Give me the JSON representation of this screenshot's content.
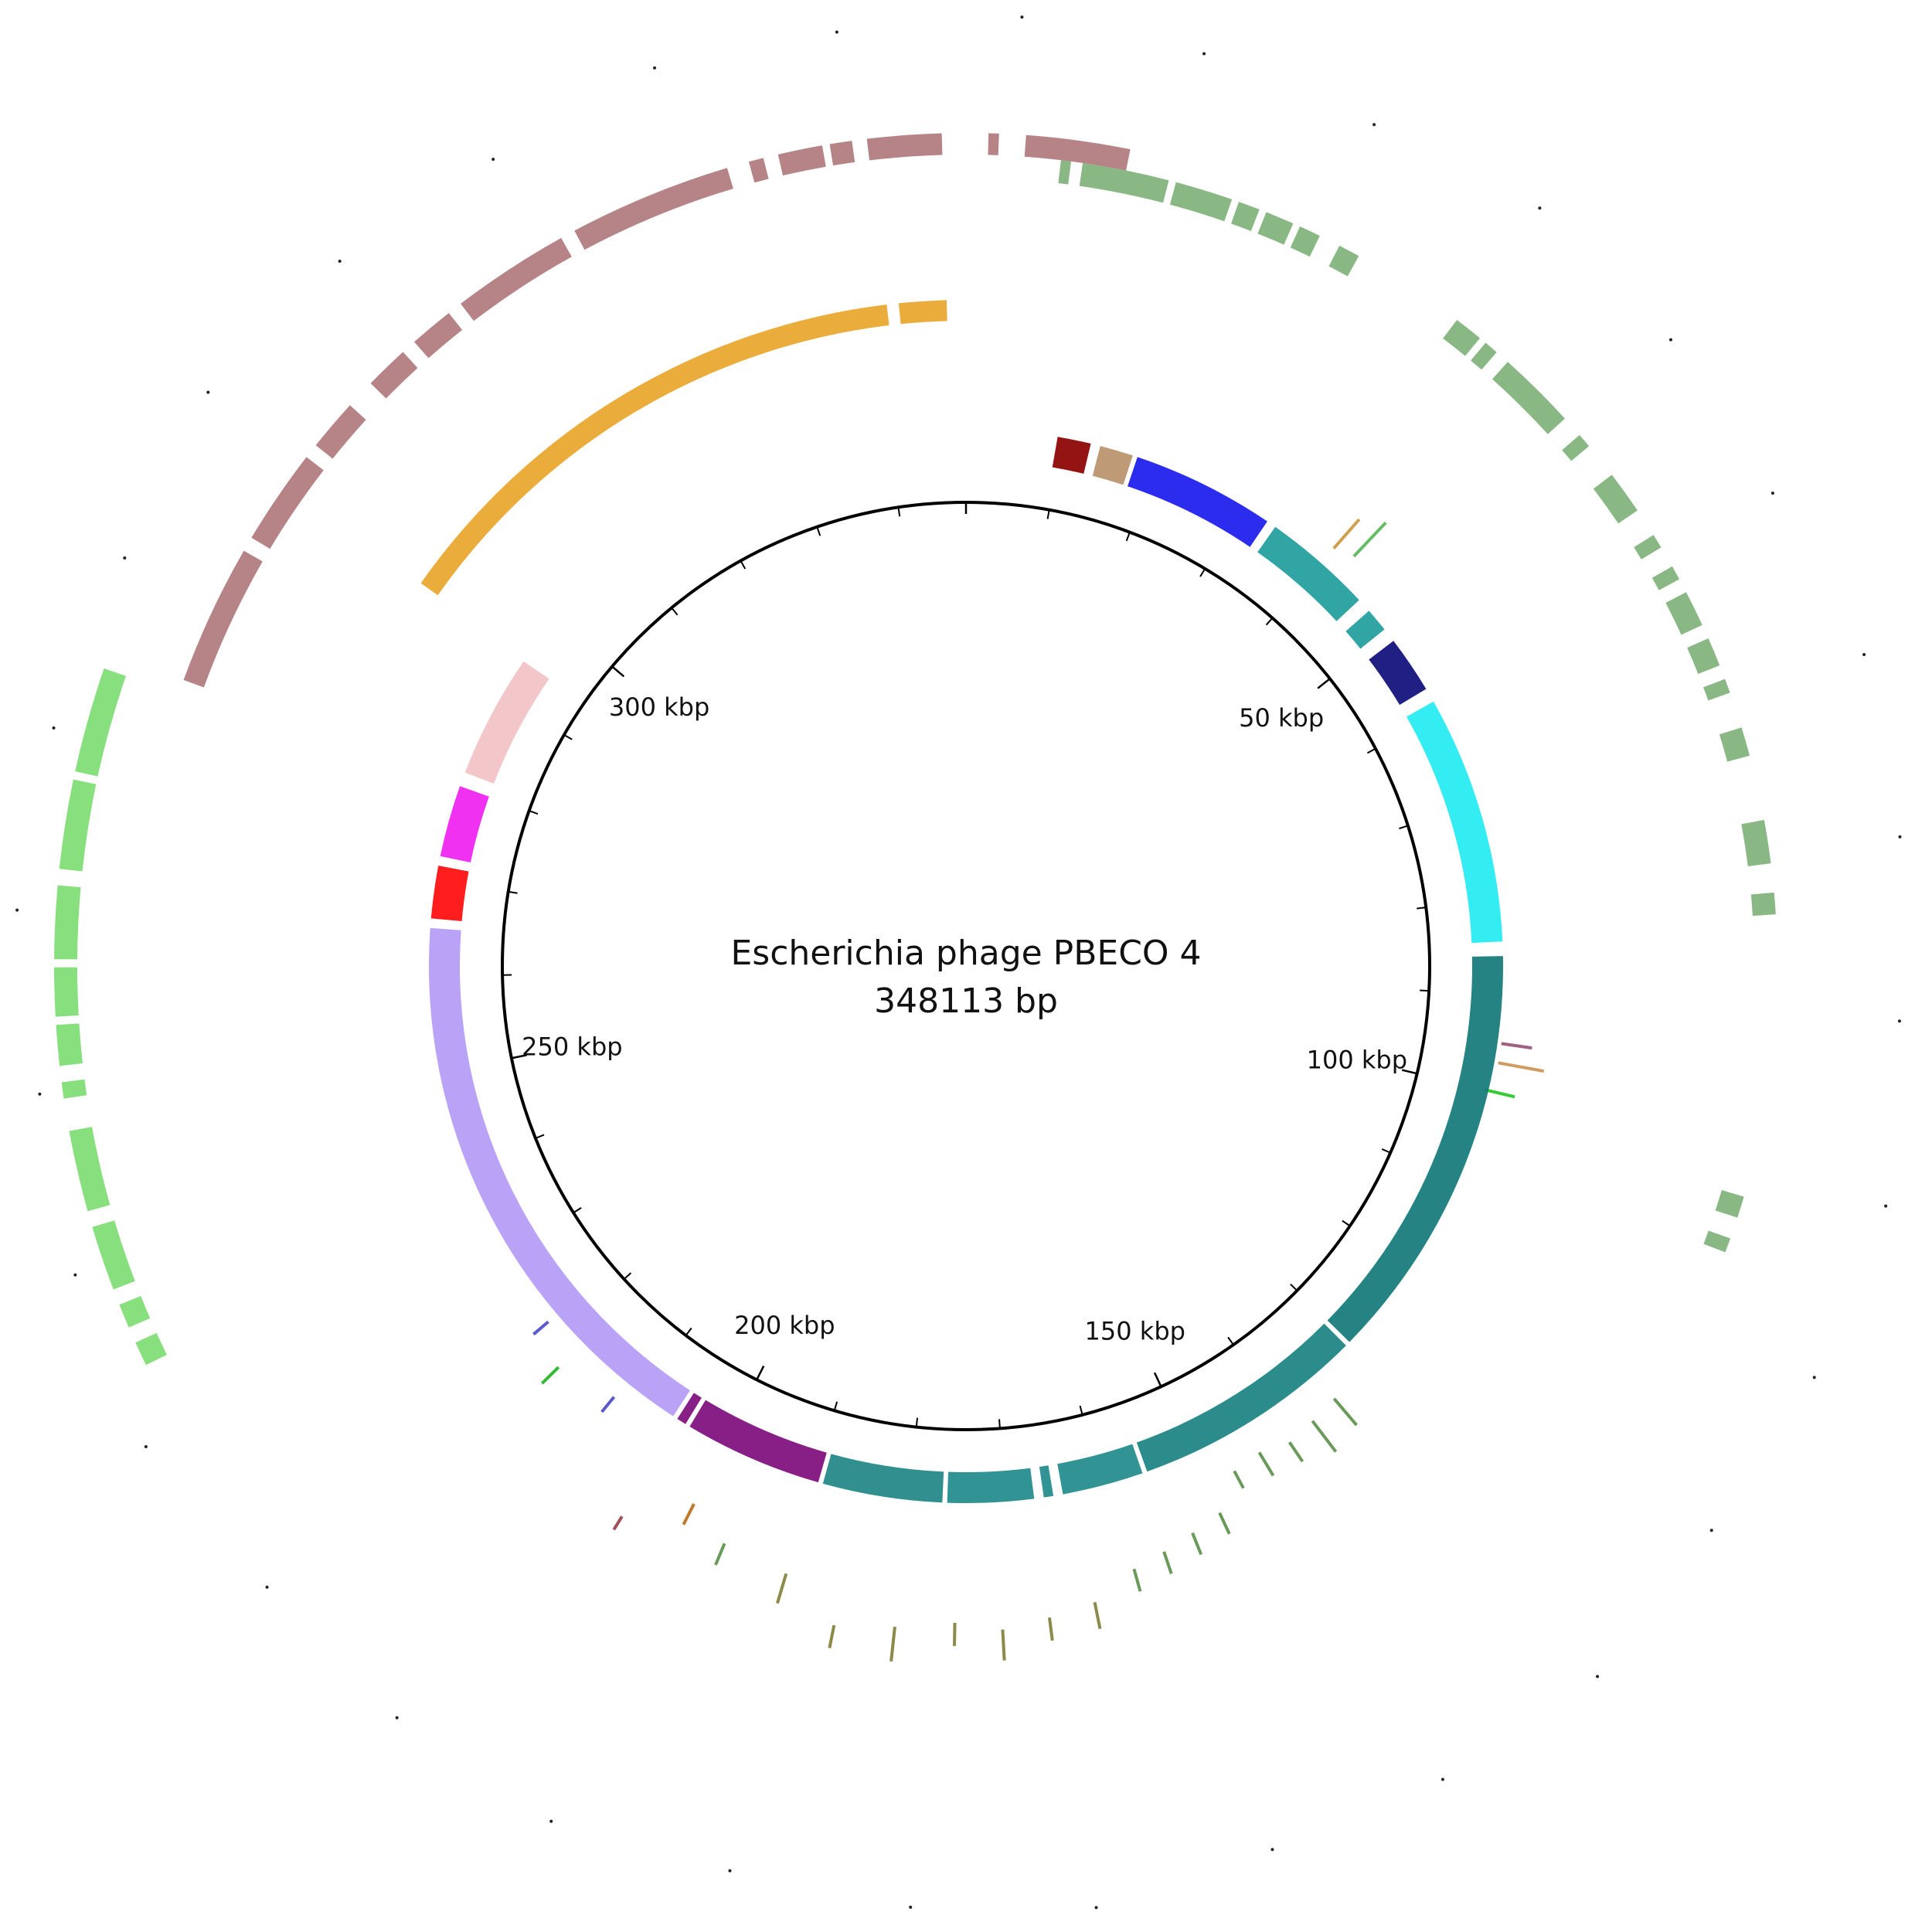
{
  "title": {
    "organism": "Escherichia phage PBECO 4",
    "length_label": "348113 bp"
  },
  "genome_length": 348113,
  "tick_labels": [
    {
      "pos": 50000,
      "text": "50 kbp"
    },
    {
      "pos": 100000,
      "text": "100 kbp"
    },
    {
      "pos": 150000,
      "text": "150 kbp"
    },
    {
      "pos": 200000,
      "text": "200 kbp"
    },
    {
      "pos": 250000,
      "text": "250 kbp"
    },
    {
      "pos": 300000,
      "text": "300 kbp"
    }
  ],
  "minor_tick_step": 10000,
  "contig_ring": [
    {
      "start": 9500,
      "end": 13000,
      "color": "#8b0000"
    },
    {
      "start": 14000,
      "end": 17500,
      "color": "#b8926a"
    },
    {
      "start": 18000,
      "end": 33000,
      "color": "#1a1aee"
    },
    {
      "start": 34000,
      "end": 45500,
      "color": "#1f9c9c"
    },
    {
      "start": 47000,
      "end": 49500,
      "color": "#1f9c9c"
    },
    {
      "start": 51000,
      "end": 57000,
      "color": "#0c0c7a"
    },
    {
      "start": 58500,
      "end": 84500,
      "color": "#22ecf2"
    },
    {
      "start": 86000,
      "end": 130000,
      "color": "#127878"
    },
    {
      "start": 130500,
      "end": 155000,
      "color": "#1a8282"
    },
    {
      "start": 155500,
      "end": 164000,
      "color": "#1f8a8a"
    },
    {
      "start": 165000,
      "end": 166000,
      "color": "#1f8a8a"
    },
    {
      "start": 167000,
      "end": 176000,
      "color": "#1f8a8a"
    },
    {
      "start": 176500,
      "end": 189000,
      "color": "#1f8585"
    },
    {
      "start": 189500,
      "end": 204000,
      "color": "#7d0c7d"
    },
    {
      "start": 204500,
      "end": 205500,
      "color": "#7d0c7d"
    },
    {
      "start": 206000,
      "end": 265000,
      "color": "#b49af5"
    },
    {
      "start": 266000,
      "end": 271500,
      "color": "#ff0a0a"
    },
    {
      "start": 272500,
      "end": 280000,
      "color": "#f01ff0"
    },
    {
      "start": 281500,
      "end": 294500,
      "color": "#f2c2c6"
    }
  ],
  "orange_ring": [
    {
      "start": 295000,
      "end": 341500,
      "color": "#e8a52a"
    },
    {
      "start": 342500,
      "end": 346500,
      "color": "#e8a52a"
    }
  ],
  "mauve_ring": [
    {
      "start": 280500,
      "end": 290000,
      "color": "#b07a7d"
    },
    {
      "start": 291000,
      "end": 297500,
      "color": "#b07a7d"
    },
    {
      "start": 298500,
      "end": 302000,
      "color": "#b07a7d"
    },
    {
      "start": 304000,
      "end": 307000,
      "color": "#b07a7d"
    },
    {
      "start": 308000,
      "end": 311000,
      "color": "#b07a7d"
    },
    {
      "start": 312000,
      "end": 320000,
      "color": "#b07a7d"
    },
    {
      "start": 321000,
      "end": 332000,
      "color": "#b07a7d"
    },
    {
      "start": 333500,
      "end": 334500,
      "color": "#b07a7d"
    },
    {
      "start": 335500,
      "end": 338500,
      "color": "#b07a7d"
    },
    {
      "start": 339000,
      "end": 340500,
      "color": "#b07a7d"
    },
    {
      "start": 341500,
      "end": 346500,
      "color": "#b07a7d"
    },
    {
      "start": 1500,
      "end": 2200,
      "color": "#b07a7d"
    },
    {
      "start": 4000,
      "end": 11000,
      "color": "#b07a7d"
    }
  ],
  "green_outer_ring": [
    {
      "start": 6500,
      "end": 7200,
      "color": "#7fb27a"
    },
    {
      "start": 8000,
      "end": 14000,
      "color": "#7fb27a"
    },
    {
      "start": 14500,
      "end": 18500,
      "color": "#7fb27a"
    },
    {
      "start": 19000,
      "end": 20500,
      "color": "#7fb27a"
    },
    {
      "start": 21000,
      "end": 23000,
      "color": "#7fb27a"
    },
    {
      "start": 23500,
      "end": 25000,
      "color": "#7fb27a"
    },
    {
      "start": 26500,
      "end": 28000,
      "color": "#7fb27a"
    },
    {
      "start": 36000,
      "end": 38000,
      "color": "#7fb27a"
    },
    {
      "start": 38500,
      "end": 39500,
      "color": "#7fb27a"
    },
    {
      "start": 40500,
      "end": 46000,
      "color": "#7fb27a"
    },
    {
      "start": 47500,
      "end": 48500,
      "color": "#7fb27a"
    },
    {
      "start": 51000,
      "end": 54000,
      "color": "#7fb27a"
    },
    {
      "start": 56000,
      "end": 57000,
      "color": "#7fb27a"
    },
    {
      "start": 58500,
      "end": 59500,
      "color": "#7fb27a"
    },
    {
      "start": 60500,
      "end": 63000,
      "color": "#7fb27a"
    },
    {
      "start": 64000,
      "end": 66000,
      "color": "#7fb27a"
    },
    {
      "start": 67000,
      "end": 68000,
      "color": "#7fb27a"
    },
    {
      "start": 70500,
      "end": 72500,
      "color": "#7fb27a"
    },
    {
      "start": 77000,
      "end": 80000,
      "color": "#7fb27a"
    },
    {
      "start": 82000,
      "end": 83500,
      "color": "#7fb27a"
    },
    {
      "start": 103000,
      "end": 104500,
      "color": "#7fb27a"
    },
    {
      "start": 106000,
      "end": 107000,
      "color": "#7fb27a"
    }
  ],
  "bright_green_ring": [
    {
      "start": 236000,
      "end": 237500,
      "color": "#7ddc72"
    },
    {
      "start": 238500,
      "end": 240000,
      "color": "#7ddc72"
    },
    {
      "start": 241000,
      "end": 245000,
      "color": "#7ddc72"
    },
    {
      "start": 246000,
      "end": 251000,
      "color": "#7ddc72"
    },
    {
      "start": 253000,
      "end": 254000,
      "color": "#7ddc72"
    },
    {
      "start": 255000,
      "end": 257500,
      "color": "#7ddc72"
    },
    {
      "start": 258000,
      "end": 261000,
      "color": "#7ddc72"
    },
    {
      "start": 261500,
      "end": 266000,
      "color": "#7ddc72"
    },
    {
      "start": 267000,
      "end": 272500,
      "color": "#7ddc72"
    },
    {
      "start": 273000,
      "end": 279500,
      "color": "#7ddc72"
    }
  ],
  "scatter_marks": [
    {
      "pos": 135000,
      "r1": 735,
      "r2": 780,
      "color": "#6a9a5a"
    },
    {
      "pos": 138000,
      "r1": 740,
      "r2": 790,
      "color": "#6a9a5a"
    },
    {
      "pos": 141000,
      "r1": 745,
      "r2": 775,
      "color": "#6a9a5a"
    },
    {
      "pos": 144000,
      "r1": 735,
      "r2": 770,
      "color": "#6a9a5a"
    },
    {
      "pos": 147000,
      "r1": 740,
      "r2": 765,
      "color": "#6a9a5a"
    },
    {
      "pos": 150000,
      "r1": 780,
      "r2": 810,
      "color": "#6a9a5a"
    },
    {
      "pos": 153000,
      "r1": 790,
      "r2": 820,
      "color": "#6a9a5a"
    },
    {
      "pos": 156000,
      "r1": 800,
      "r2": 830,
      "color": "#6a9a5a"
    },
    {
      "pos": 159000,
      "r1": 810,
      "r2": 840,
      "color": "#6a9a5a"
    },
    {
      "pos": 163000,
      "r1": 840,
      "r2": 875,
      "color": "#8c8a4a"
    },
    {
      "pos": 167000,
      "r1": 850,
      "r2": 880,
      "color": "#8c8a4a"
    },
    {
      "pos": 171000,
      "r1": 860,
      "r2": 900,
      "color": "#8c8a4a"
    },
    {
      "pos": 175000,
      "r1": 850,
      "r2": 880,
      "color": "#8c8a4a"
    },
    {
      "pos": 180000,
      "r1": 860,
      "r2": 905,
      "color": "#8c8a4a"
    },
    {
      "pos": 185000,
      "r1": 870,
      "r2": 900,
      "color": "#8c8a4a"
    },
    {
      "pos": 190000,
      "r1": 820,
      "r2": 860,
      "color": "#8c8a4a"
    },
    {
      "pos": 196000,
      "r1": 810,
      "r2": 840,
      "color": "#6a9a5a"
    },
    {
      "pos": 200000,
      "r1": 780,
      "r2": 810,
      "color": "#c07a30"
    },
    {
      "pos": 205000,
      "r1": 840,
      "r2": 860,
      "color": "#a0505a"
    },
    {
      "pos": 212000,
      "r1": 720,
      "r2": 745,
      "color": "#5a5acc"
    },
    {
      "pos": 218000,
      "r1": 740,
      "r2": 770,
      "color": "#33bb33"
    },
    {
      "pos": 222000,
      "r1": 710,
      "r2": 735,
      "color": "#5a5acc"
    },
    {
      "pos": 95000,
      "r1": 700,
      "r2": 740,
      "color": "#a06080"
    },
    {
      "pos": 97000,
      "r1": 700,
      "r2": 760,
      "color": "#d09a60"
    },
    {
      "pos": 100000,
      "r1": 690,
      "r2": 730,
      "color": "#33cc33"
    },
    {
      "pos": 40000,
      "r1": 720,
      "r2": 770,
      "color": "#d0a050"
    },
    {
      "pos": 42000,
      "r1": 730,
      "r2": 790,
      "color": "#66bb66"
    }
  ],
  "outer_dots_count": 32
}
